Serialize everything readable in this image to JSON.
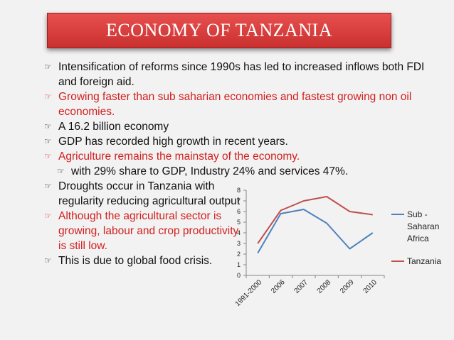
{
  "title": "ECONOMY OF TANZANIA",
  "bullet_icon": "pointing-hand-icon",
  "bullets": [
    {
      "text": "Intensification of reforms since 1990s has led to increased inflows both FDI and foreign aid.",
      "color": "#111111"
    },
    {
      "text": "Growing faster than sub saharian economies and  fastest growing non oil economies.",
      "color": "#d21f1f"
    },
    {
      "text": "A 16.2 billion economy",
      "color": "#111111"
    },
    {
      "text": "GDP has recorded high growth in recent years.",
      "color": "#111111"
    },
    {
      "text": "Agriculture remains the mainstay of the economy.",
      "color": "#d21f1f"
    },
    {
      "text": "with 29% share to GDP, Industry 24% and services 47%.",
      "color": "#111111"
    },
    {
      "text": "Droughts occur in Tanzania with regularity reducing agricultural output",
      "color": "#111111"
    },
    {
      "text": "Although the agricultural sector is growing, labour and crop productivity is still low.",
      "color": "#d21f1f"
    },
    {
      "text": "This is due to global food crisis.",
      "color": "#111111"
    }
  ],
  "chart_data": {
    "type": "line",
    "categories": [
      "1991-2000",
      "2006",
      "2007",
      "2008",
      "2009",
      "2010"
    ],
    "series": [
      {
        "name": "Sub -Saharan Africa",
        "values": [
          2.1,
          5.8,
          6.2,
          4.9,
          2.5,
          4.0
        ],
        "color": "#4f81bd"
      },
      {
        "name": "Tanzania",
        "values": [
          3.0,
          6.1,
          7.0,
          7.4,
          6.0,
          5.7
        ],
        "color": "#c0504d"
      }
    ],
    "ylim": [
      0,
      8
    ],
    "yticks": [
      0,
      1,
      2,
      3,
      4,
      5,
      6,
      7,
      8
    ],
    "legend": "right",
    "grid": false
  }
}
